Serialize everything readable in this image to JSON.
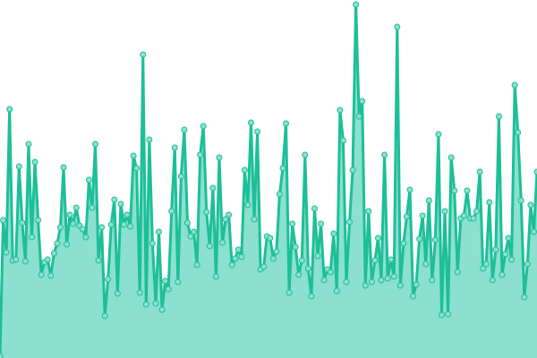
{
  "chart_data": {
    "type": "area",
    "title": "",
    "xlabel": "",
    "ylabel": "",
    "ylim": [
      0,
      400
    ],
    "grid": false,
    "legend": "none",
    "colors": {
      "line": "#1dbf98",
      "fill": "#8be0cf",
      "marker_fill": "#8be0cf",
      "marker_stroke": "#1dbf98"
    },
    "values": [
      2,
      154,
      118,
      278,
      109,
      110,
      214,
      151,
      108,
      239,
      135,
      219,
      154,
      93,
      107,
      110,
      92,
      117,
      128,
      146,
      213,
      127,
      160,
      150,
      168,
      148,
      144,
      135,
      199,
      168,
      239,
      109,
      146,
      47,
      88,
      149,
      177,
      72,
      172,
      149,
      160,
      147,
      226,
      212,
      73,
      339,
      60,
      244,
      128,
      61,
      141,
      54,
      86,
      77,
      164,
      235,
      85,
      203,
      255,
      151,
      136,
      141,
      104,
      227,
      259,
      163,
      125,
      190,
      91,
      224,
      129,
      155,
      160,
      104,
      111,
      121,
      113,
      210,
      171,
      263,
      155,
      253,
      99,
      102,
      136,
      134,
      111,
      119,
      183,
      212,
      262,
      73,
      150,
      124,
      93,
      109,
      227,
      100,
      69,
      167,
      114,
      150,
      87,
      99,
      96,
      139,
      75,
      277,
      243,
      85,
      152,
      210,
      395,
      270,
      287,
      81,
      164,
      85,
      109,
      134,
      87,
      227,
      89,
      110,
      91,
      370,
      81,
      128,
      158,
      188,
      69,
      82,
      133,
      159,
      105,
      176,
      87,
      132,
      250,
      48,
      164,
      49,
      224,
      187,
      96,
      156,
      159,
      187,
      156,
      156,
      164,
      208,
      100,
      105,
      174,
      87,
      121,
      270,
      93,
      116,
      134,
      110,
      305,
      252,
      176,
      68,
      105,
      171,
      141,
      208
    ]
  }
}
